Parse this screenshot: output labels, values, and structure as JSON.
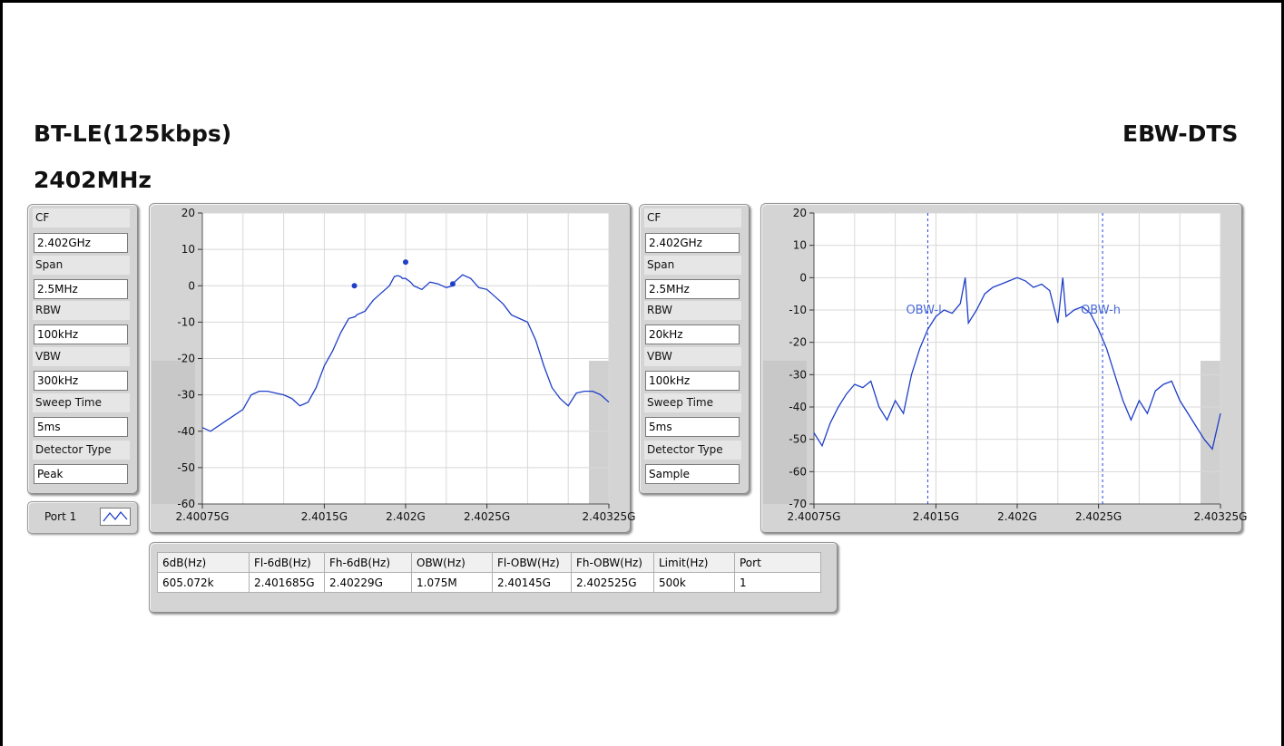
{
  "header": {
    "mode": "BT-LE(125kbps)",
    "freq": "2402MHz",
    "test": "EBW-DTS"
  },
  "left_params": [
    {
      "label": "CF",
      "value": "2.402GHz"
    },
    {
      "label": "Span",
      "value": "2.5MHz"
    },
    {
      "label": "RBW",
      "value": "100kHz"
    },
    {
      "label": "VBW",
      "value": "300kHz"
    },
    {
      "label": "Sweep Time",
      "value": "5ms"
    },
    {
      "label": "Detector Type",
      "value": "Peak"
    }
  ],
  "right_params": [
    {
      "label": "CF",
      "value": "2.402GHz"
    },
    {
      "label": "Span",
      "value": "2.5MHz"
    },
    {
      "label": "RBW",
      "value": "20kHz"
    },
    {
      "label": "VBW",
      "value": "100kHz"
    },
    {
      "label": "Sweep Time",
      "value": "5ms"
    },
    {
      "label": "Detector Type",
      "value": "Sample"
    }
  ],
  "legend": {
    "label": "Port 1"
  },
  "colors": {
    "trace": "#1f3fc8",
    "marker_line": "#2244dd",
    "panel": "#d4d4d4"
  },
  "result_table": {
    "headers": [
      "6dB(Hz)",
      "Fl-6dB(Hz)",
      "Fh-6dB(Hz)",
      "OBW(Hz)",
      "Fl-OBW(Hz)",
      "Fh-OBW(Hz)",
      "Limit(Hz)",
      "Port"
    ],
    "row": [
      "605.072k",
      "2.401685G",
      "2.40229G",
      "1.075M",
      "2.40145G",
      "2.402525G",
      "500k",
      "1"
    ]
  },
  "chart_data": [
    {
      "type": "line",
      "title": "",
      "xlabel": "",
      "ylabel": "",
      "xlim": [
        2.40075,
        2.40325
      ],
      "ylim": [
        -60,
        20
      ],
      "x_tick_labels": [
        "2.40075G",
        "2.4015G",
        "2.402G",
        "2.4025G",
        "2.40325G"
      ],
      "x_tick_values": [
        2.40075,
        2.4015,
        2.402,
        2.4025,
        2.40325
      ],
      "y_ticks": [
        20,
        10,
        0,
        -10,
        -20,
        -30,
        -40,
        -50,
        -60
      ],
      "grid": true,
      "series": [
        {
          "x": [
            2.40075,
            2.4008,
            2.4009,
            2.401,
            2.40105,
            2.4011,
            2.40115,
            2.4012,
            2.40125,
            2.4013,
            2.40135,
            2.4014,
            2.40145,
            2.4015,
            2.40155,
            2.4016,
            2.40165,
            2.40169,
            2.4017,
            2.40175,
            2.4018,
            2.40185,
            2.4019,
            2.40193,
            2.40195,
            2.40197,
            2.40198,
            2.402,
            2.40203,
            2.40205,
            2.4021,
            2.40215,
            2.4022,
            2.40225,
            2.40229,
            2.4023,
            2.40235,
            2.4024,
            2.40245,
            2.4025,
            2.40255,
            2.4026,
            2.40265,
            2.4027,
            2.40275,
            2.4028,
            2.40285,
            2.4029,
            2.40295,
            2.403,
            2.40305,
            2.4031,
            2.40315,
            2.4032,
            2.40325
          ],
          "y": [
            -39,
            -40,
            -37,
            -34,
            -30,
            -29,
            -29,
            -29.5,
            -30,
            -31,
            -33,
            -32,
            -28,
            -22,
            -18,
            -13,
            -9,
            -8.5,
            -8,
            -7,
            -4,
            -2,
            0,
            2.5,
            2.8,
            2.5,
            2,
            2,
            1,
            0,
            -1,
            1,
            0.5,
            -0.5,
            0,
            1,
            3,
            2,
            -0.5,
            -1,
            -3,
            -5,
            -8,
            -9,
            -10,
            -15,
            -22,
            -28,
            -31,
            -33,
            -29.5,
            -29,
            -29,
            -30,
            -32
          ]
        }
      ],
      "markers": [
        {
          "x": 2.401685,
          "y": 0
        },
        {
          "x": 2.402,
          "y": 6.5
        },
        {
          "x": 2.40229,
          "y": 0.5
        }
      ]
    },
    {
      "type": "line",
      "title": "",
      "xlabel": "",
      "ylabel": "",
      "xlim": [
        2.40075,
        2.40325
      ],
      "ylim": [
        -70,
        20
      ],
      "x_tick_labels": [
        "2.40075G",
        "2.4015G",
        "2.402G",
        "2.4025G",
        "2.40325G"
      ],
      "x_tick_values": [
        2.40075,
        2.4015,
        2.402,
        2.4025,
        2.40325
      ],
      "y_ticks": [
        20,
        10,
        0,
        -10,
        -20,
        -30,
        -40,
        -50,
        -60,
        -70
      ],
      "grid": true,
      "series": [
        {
          "x": [
            2.40075,
            2.4008,
            2.40085,
            2.4009,
            2.40095,
            2.401,
            2.40105,
            2.4011,
            2.40115,
            2.4012,
            2.40125,
            2.4013,
            2.40135,
            2.4014,
            2.40145,
            2.4015,
            2.40155,
            2.4016,
            2.40165,
            2.40168,
            2.4017,
            2.40175,
            2.4018,
            2.40185,
            2.4019,
            2.40195,
            2.402,
            2.40205,
            2.4021,
            2.40215,
            2.4022,
            2.40225,
            2.40228,
            2.4023,
            2.40235,
            2.4024,
            2.40245,
            2.4025,
            2.40255,
            2.4026,
            2.40265,
            2.4027,
            2.40275,
            2.4028,
            2.40285,
            2.4029,
            2.40295,
            2.403,
            2.40305,
            2.4031,
            2.40315,
            2.4032,
            2.40325
          ],
          "y": [
            -48,
            -52,
            -45,
            -40,
            -36,
            -33,
            -34,
            -32,
            -40,
            -44,
            -38,
            -42,
            -30,
            -22,
            -16,
            -12,
            -10,
            -11,
            -8,
            0,
            -14,
            -10,
            -5,
            -3,
            -2,
            -1,
            0,
            -1,
            -3,
            -2,
            -4,
            -14,
            0,
            -12,
            -10,
            -9,
            -11,
            -16,
            -22,
            -30,
            -38,
            -44,
            -38,
            -42,
            -35,
            -33,
            -32,
            -38,
            -42,
            -46,
            -50,
            -53,
            -42
          ],
          "annotations": [
            {
              "label": "OBW-l",
              "x": 2.40145
            },
            {
              "label": "OBW-h",
              "x": 2.402525
            }
          ]
        }
      ]
    }
  ]
}
